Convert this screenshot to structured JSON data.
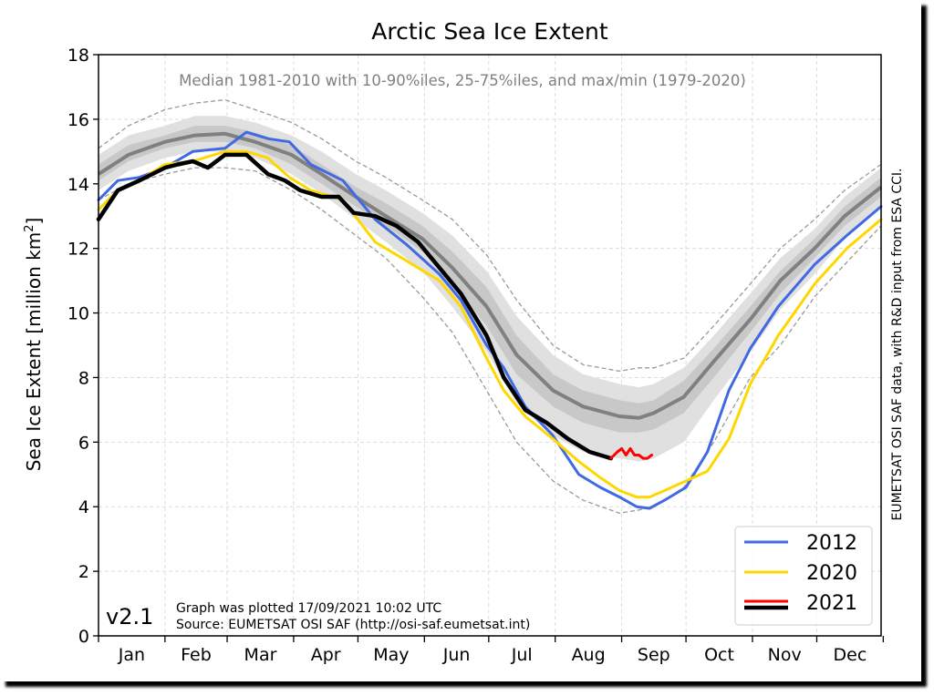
{
  "chart_data": {
    "type": "line",
    "title": "Arctic Sea Ice Extent",
    "subtitle": "Median 1981-2010 with 10-90%iles, 25-75%iles, and max/min (1979-2020)",
    "ylabel": "Sea Ice Extent [million km",
    "ylabel_sup": "2",
    "ylabel_end": "]",
    "ylim": [
      0,
      18
    ],
    "yticks": [
      "0",
      "2",
      "4",
      "6",
      "8",
      "10",
      "12",
      "14",
      "16",
      "18"
    ],
    "xlim_day": [
      1,
      366
    ],
    "months": [
      "Jan",
      "Feb",
      "Mar",
      "Apr",
      "May",
      "Jun",
      "Jul",
      "Aug",
      "Sep",
      "Oct",
      "Nov",
      "Dec"
    ],
    "grid": true,
    "legend_position": "lower-right",
    "version": "v2.1",
    "plotted_note": "Graph was plotted 17/09/2021 10:02 UTC",
    "source_note": "Source: EUMETSAT OSI SAF (http://osi-saf.eumetsat.int)",
    "side_note": "EUMETSAT OSI SAF data, with R&D input from ESA CCI.",
    "x_day": [
      1,
      15,
      32,
      46,
      60,
      74,
      91,
      105,
      121,
      135,
      152,
      166,
      182,
      196,
      213,
      227,
      244,
      253,
      260,
      274,
      288,
      305,
      319,
      335,
      349,
      366
    ],
    "bands": {
      "min": [
        13.5,
        14.0,
        14.3,
        14.5,
        14.5,
        14.4,
        13.8,
        13.2,
        12.4,
        11.7,
        10.5,
        9.4,
        7.6,
        6.0,
        4.8,
        4.2,
        3.8,
        3.9,
        4.0,
        4.6,
        6.0,
        8.0,
        9.0,
        10.5,
        11.5,
        12.7
      ],
      "p10": [
        13.8,
        14.4,
        14.8,
        15.0,
        15.0,
        14.8,
        14.3,
        13.7,
        12.9,
        12.2,
        11.3,
        10.2,
        8.8,
        7.2,
        6.2,
        5.7,
        5.5,
        5.4,
        5.5,
        6.0,
        7.3,
        8.8,
        10.1,
        11.2,
        12.3,
        13.3
      ],
      "p25": [
        14.1,
        14.7,
        15.1,
        15.3,
        15.3,
        15.1,
        14.6,
        14.0,
        13.3,
        12.7,
        11.9,
        10.9,
        9.6,
        8.1,
        7.1,
        6.6,
        6.3,
        6.3,
        6.4,
        6.9,
        8.0,
        9.4,
        10.6,
        11.7,
        12.7,
        13.6
      ],
      "median": [
        14.3,
        14.9,
        15.3,
        15.5,
        15.55,
        15.3,
        14.9,
        14.3,
        13.6,
        13.0,
        12.3,
        11.4,
        10.2,
        8.7,
        7.6,
        7.1,
        6.8,
        6.75,
        6.9,
        7.4,
        8.5,
        9.8,
        11.0,
        12.0,
        13.0,
        13.9
      ],
      "p75": [
        14.6,
        15.2,
        15.5,
        15.8,
        15.8,
        15.6,
        15.2,
        14.6,
        13.9,
        13.4,
        12.7,
        11.9,
        10.8,
        9.3,
        8.1,
        7.6,
        7.3,
        7.2,
        7.3,
        7.9,
        8.9,
        10.2,
        11.3,
        12.3,
        13.3,
        14.2
      ],
      "p90": [
        14.9,
        15.5,
        15.8,
        16.1,
        16.1,
        15.9,
        15.5,
        15.0,
        14.3,
        13.8,
        13.1,
        12.4,
        11.3,
        9.9,
        8.7,
        8.1,
        7.8,
        7.7,
        7.8,
        8.3,
        9.3,
        10.6,
        11.7,
        12.6,
        13.6,
        14.5
      ],
      "max": [
        15.1,
        15.8,
        16.3,
        16.5,
        16.6,
        16.3,
        15.9,
        15.4,
        14.7,
        14.2,
        13.5,
        12.9,
        11.8,
        10.4,
        9.0,
        8.4,
        8.2,
        8.3,
        8.3,
        8.6,
        9.6,
        10.9,
        12.0,
        12.9,
        13.8,
        14.6
      ]
    },
    "series": [
      {
        "name": "2012",
        "color": "#4169e1",
        "x": [
          1,
          10,
          20,
          32,
          45,
          60,
          70,
          80,
          90,
          100,
          115,
          130,
          145,
          160,
          170,
          182,
          190,
          200,
          213,
          225,
          235,
          244,
          252,
          258,
          265,
          275,
          285,
          295,
          305,
          318,
          335,
          350,
          366
        ],
        "y": [
          13.5,
          14.1,
          14.2,
          14.5,
          15.0,
          15.1,
          15.6,
          15.4,
          15.3,
          14.6,
          14.1,
          12.9,
          12.1,
          11.2,
          10.4,
          9.0,
          8.3,
          7.1,
          6.2,
          5.0,
          4.6,
          4.3,
          4.0,
          3.95,
          4.2,
          4.6,
          5.7,
          7.6,
          8.9,
          10.2,
          11.5,
          12.4,
          13.3
        ]
      },
      {
        "name": "2020",
        "color": "#ffd700",
        "x": [
          1,
          10,
          20,
          32,
          45,
          60,
          70,
          80,
          90,
          100,
          115,
          130,
          145,
          160,
          170,
          182,
          190,
          200,
          213,
          225,
          235,
          244,
          252,
          258,
          265,
          275,
          285,
          295,
          305,
          318,
          335,
          350,
          366
        ],
        "y": [
          13.2,
          13.8,
          14.1,
          14.6,
          14.7,
          15.0,
          15.0,
          14.8,
          14.2,
          13.8,
          13.5,
          12.2,
          11.6,
          11.0,
          10.2,
          8.6,
          7.6,
          6.8,
          6.1,
          5.4,
          4.9,
          4.5,
          4.3,
          4.3,
          4.5,
          4.8,
          5.1,
          6.1,
          7.8,
          9.3,
          10.9,
          12.0,
          12.9
        ]
      },
      {
        "name": "2021",
        "color": "#000000",
        "x": [
          1,
          10,
          20,
          32,
          38,
          45,
          52,
          60,
          70,
          80,
          88,
          95,
          105,
          113,
          120,
          130,
          140,
          150,
          160,
          170,
          182,
          190,
          200,
          210,
          220,
          230,
          240
        ],
        "y": [
          12.9,
          13.8,
          14.1,
          14.5,
          14.6,
          14.7,
          14.5,
          14.9,
          14.9,
          14.3,
          14.1,
          13.8,
          13.6,
          13.6,
          13.1,
          13.0,
          12.7,
          12.2,
          11.4,
          10.6,
          9.3,
          8.0,
          7.0,
          6.6,
          6.1,
          5.7,
          5.5
        ]
      },
      {
        "name": "2021 (latest)",
        "color": "#ff0000",
        "x": [
          240,
          243,
          245,
          247,
          249,
          251,
          253,
          255,
          257,
          259
        ],
        "y": [
          5.5,
          5.7,
          5.8,
          5.6,
          5.8,
          5.6,
          5.6,
          5.5,
          5.5,
          5.6
        ]
      }
    ],
    "legend": [
      {
        "label": "2012",
        "color": "#4169e1"
      },
      {
        "label": "2020",
        "color": "#ffd700"
      },
      {
        "label": "2021",
        "color": "#ff0000",
        "underlay": "#000000"
      }
    ],
    "colors": {
      "band_outer": "#e0e0e0",
      "band_middle": "#c8c8c8",
      "band_inner": "#a8a8a8",
      "median": "#808080",
      "minmax_dash": "#999999",
      "grid": "#dddddd"
    }
  }
}
